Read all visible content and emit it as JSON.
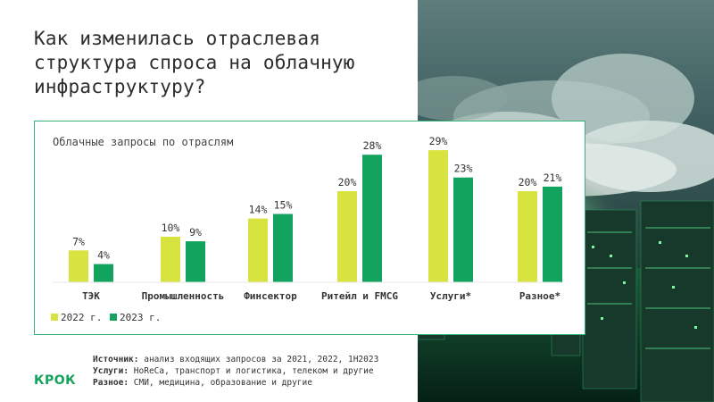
{
  "title": "Как изменилась отраслевая структура спроса на облачную инфраструктуру?",
  "chart_data": {
    "type": "bar",
    "title": "Облачные запросы по отраслям",
    "categories": [
      "ТЭК",
      "Промышленность",
      "Финсектор",
      "Ритейл и FMCG",
      "Услуги*",
      "Разное*"
    ],
    "series": [
      {
        "name": "2022 г.",
        "values": [
          7,
          10,
          14,
          20,
          29,
          20
        ],
        "color": "#d7e33e"
      },
      {
        "name": "2023 г.",
        "values": [
          4,
          9,
          15,
          28,
          23,
          21
        ],
        "color": "#12a35e"
      }
    ],
    "value_suffix": "%",
    "legend_position": "bottom-left",
    "grid": false
  },
  "footnotes": {
    "source_label": "Источник:",
    "source_text": "анализ входящих запросов за 2021, 2022, 1H2023",
    "services_label": "Услуги:",
    "services_text": "HoReCa, транспорт и логистика, телеком и другие",
    "other_label": "Разное:",
    "other_text": "СМИ, медицина, образование и другие"
  },
  "logo": "КРОК"
}
